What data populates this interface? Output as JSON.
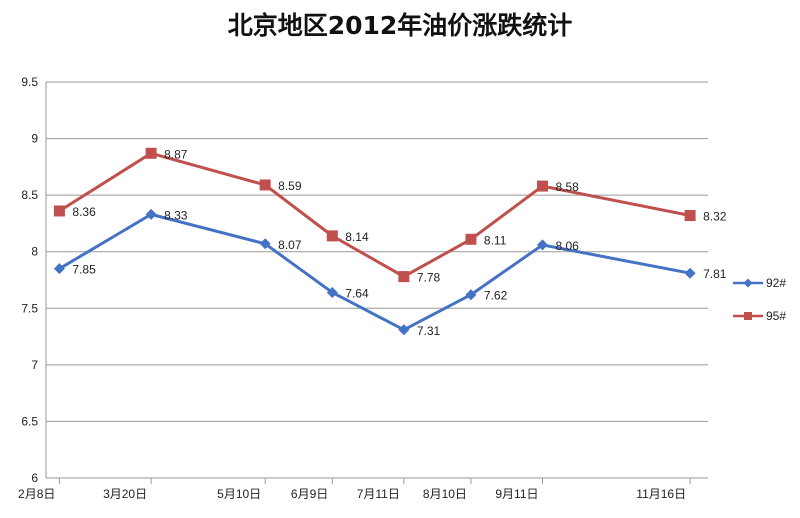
{
  "chart_data": {
    "type": "line",
    "title": "北京地区2012年油价涨跌统计",
    "categories": [
      "2月8日",
      "3月20日",
      "5月10日",
      "6月9日",
      "7月11日",
      "8月10日",
      "9月11日",
      "11月16日"
    ],
    "x_days": [
      39,
      80,
      131,
      161,
      193,
      223,
      255,
      321
    ],
    "series": [
      {
        "name": "92#",
        "color": "#4472C4",
        "marker": "diamond",
        "values": [
          7.85,
          8.33,
          8.07,
          7.64,
          7.31,
          7.62,
          8.06,
          7.81
        ],
        "labels": [
          "7.85",
          "8.33",
          "8.07",
          "7.64",
          "7.31",
          "7.62",
          "8.06",
          "7.81"
        ]
      },
      {
        "name": "95#",
        "color": "#C0504D",
        "marker": "square",
        "values": [
          8.36,
          8.87,
          8.59,
          8.14,
          7.78,
          8.11,
          8.58,
          8.32
        ],
        "labels": [
          "8.36",
          "8.87",
          "8.59",
          "8.14",
          "7.78",
          "8.11",
          "8.58",
          "8.32"
        ]
      }
    ],
    "ylim": [
      6,
      9.5
    ],
    "yticks": [
      "6",
      "6.5",
      "7",
      "7.5",
      "8",
      "8.5",
      "9",
      "9.5"
    ],
    "xlabel": "",
    "ylabel": "",
    "grid": "horizontal",
    "legend": "right"
  }
}
